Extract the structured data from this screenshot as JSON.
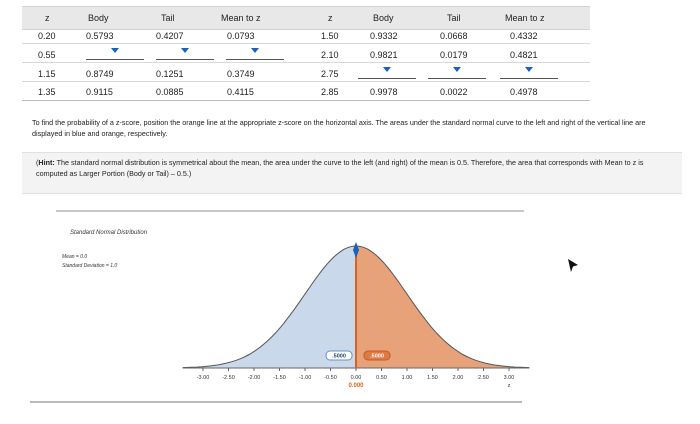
{
  "table": {
    "headers": [
      "z",
      "Body",
      "Tail",
      "Mean to z",
      "z",
      "Body",
      "Tail",
      "Mean to z"
    ],
    "left_rows": [
      {
        "z": "0.20",
        "body": "0.5793",
        "tail": "0.4207",
        "mean": "0.0793"
      },
      {
        "z": "0.55",
        "body": "",
        "tail": "",
        "mean": ""
      },
      {
        "z": "1.15",
        "body": "0.8749",
        "tail": "0.1251",
        "mean": "0.3749"
      },
      {
        "z": "1.35",
        "body": "0.9115",
        "tail": "0.0885",
        "mean": "0.4115"
      }
    ],
    "right_rows": [
      {
        "z": "1.50",
        "body": "0.9332",
        "tail": "0.0668",
        "mean": "0.4332"
      },
      {
        "z": "2.10",
        "body": "0.9821",
        "tail": "0.0179",
        "mean": "0.4821"
      },
      {
        "z": "2.75",
        "body": "",
        "tail": "",
        "mean": ""
      },
      {
        "z": "2.85",
        "body": "0.9978",
        "tail": "0.0022",
        "mean": "0.4978"
      }
    ]
  },
  "instructions": "To find the probability of a z-score, position the orange line at the appropriate z-score on the horizontal axis. The areas under the standard normal curve to the left and right of the vertical line are displayed in blue and orange, respectively.",
  "hint": {
    "label": "Hint:",
    "text": "The standard normal distribution is symmetrical about the mean, the area under the curve to the left (and right) of the mean is 0.5. Therefore, the area that corresponds with Mean to z is computed as Larger Portion (Body or Tail) – 0.5.)",
    "open_paren": "("
  },
  "chart": {
    "title": "Standard Normal Distribution",
    "mean_label": "Mean = 0.0",
    "sd_label": "Standard Deviation = 1.0",
    "left_area_label": ".5000",
    "right_area_label": ".5000",
    "z_readout": "0.000",
    "axis_unit": "z",
    "colors": {
      "left_fill": "#c9d8ea",
      "right_fill": "#e8a27a",
      "line": "#d9621e",
      "curve": "#555555"
    }
  },
  "chart_data": {
    "type": "area",
    "title": "Standard Normal Distribution",
    "mean": 0.0,
    "sd": 1.0,
    "z_position": 0.0,
    "area_left": 0.5,
    "area_right": 0.5,
    "x_ticks": [
      "-3.00",
      "-2.50",
      "-2.00",
      "-1.50",
      "-1.00",
      "-0.50",
      "0.00",
      "0.50",
      "1.00",
      "1.50",
      "2.00",
      "2.50",
      "3.00"
    ],
    "xlim": [
      -3,
      3
    ],
    "xlabel": "z"
  }
}
